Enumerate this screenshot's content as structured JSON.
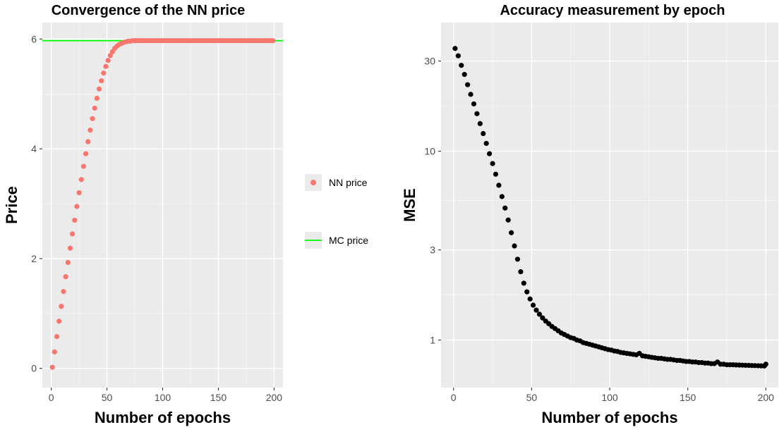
{
  "chart_data": [
    {
      "type": "scatter",
      "title": "Convergence of the NN price",
      "xlabel": "Number of epochs",
      "ylabel": "Price",
      "xlim": [
        -8,
        208
      ],
      "ylim": [
        -0.35,
        6.3
      ],
      "xticks": [
        0,
        50,
        100,
        150,
        200
      ],
      "xtick_labels": [
        "0",
        "50",
        "100",
        "150",
        "200"
      ],
      "yticks": [
        0,
        2,
        4,
        6
      ],
      "ytick_labels": [
        "0",
        "2",
        "4",
        "6"
      ],
      "grid": true,
      "legend_position": "right",
      "series": [
        {
          "name": "NN price",
          "kind": "points",
          "color": "#f8766d",
          "x": [
            1,
            3,
            5,
            7,
            9,
            11,
            13,
            15,
            17,
            19,
            21,
            23,
            25,
            27,
            29,
            31,
            33,
            35,
            37,
            39,
            41,
            43,
            45,
            47,
            49,
            51,
            53,
            55,
            57,
            59,
            61,
            63,
            65,
            67,
            69,
            71,
            73,
            75,
            77,
            79,
            81,
            83,
            85,
            87,
            89,
            91,
            93,
            95,
            97,
            99,
            101,
            103,
            105,
            107,
            109,
            111,
            113,
            115,
            117,
            119,
            121,
            123,
            125,
            127,
            129,
            131,
            133,
            135,
            137,
            139,
            141,
            143,
            145,
            147,
            149,
            151,
            153,
            155,
            157,
            159,
            161,
            163,
            165,
            167,
            169,
            171,
            173,
            175,
            177,
            179,
            181,
            183,
            185,
            187,
            189,
            191,
            193,
            195,
            197,
            199
          ],
          "y": [
            0.02,
            0.3,
            0.58,
            0.86,
            1.13,
            1.4,
            1.67,
            1.93,
            2.19,
            2.45,
            2.7,
            2.95,
            3.2,
            3.44,
            3.68,
            3.91,
            4.13,
            4.34,
            4.55,
            4.74,
            4.92,
            5.09,
            5.24,
            5.38,
            5.5,
            5.61,
            5.7,
            5.77,
            5.83,
            5.87,
            5.9,
            5.92,
            5.94,
            5.95,
            5.96,
            5.96,
            5.97,
            5.97,
            5.97,
            5.97,
            5.97,
            5.97,
            5.97,
            5.97,
            5.97,
            5.97,
            5.97,
            5.97,
            5.97,
            5.97,
            5.97,
            5.97,
            5.97,
            5.97,
            5.97,
            5.97,
            5.97,
            5.97,
            5.97,
            5.97,
            5.97,
            5.97,
            5.97,
            5.97,
            5.97,
            5.97,
            5.97,
            5.97,
            5.97,
            5.97,
            5.97,
            5.97,
            5.97,
            5.97,
            5.97,
            5.97,
            5.97,
            5.97,
            5.97,
            5.97,
            5.97,
            5.97,
            5.97,
            5.97,
            5.97,
            5.97,
            5.97,
            5.97,
            5.97,
            5.97,
            5.97,
            5.97,
            5.97,
            5.97,
            5.97,
            5.97,
            5.97,
            5.97,
            5.97,
            5.97
          ]
        },
        {
          "name": "MC price",
          "kind": "hline",
          "color": "#00ff00",
          "y": 5.97
        }
      ]
    },
    {
      "type": "scatter",
      "title": "Accuracy measurement by epoch",
      "xlabel": "Number of epochs",
      "ylabel": "MSE",
      "y_scale": "log10",
      "xlim": [
        -8,
        208
      ],
      "ylim": [
        0.56,
        48
      ],
      "xticks": [
        0,
        50,
        100,
        150,
        200
      ],
      "xtick_labels": [
        "0",
        "50",
        "100",
        "150",
        "200"
      ],
      "yticks": [
        1,
        3,
        10,
        30
      ],
      "ytick_labels": [
        "1",
        "3",
        "10",
        "30"
      ],
      "grid": true,
      "series": [
        {
          "name": "",
          "kind": "points",
          "color": "#000000",
          "x": [
            1,
            3,
            5,
            7,
            9,
            11,
            13,
            15,
            17,
            19,
            21,
            23,
            25,
            27,
            29,
            31,
            33,
            35,
            37,
            39,
            41,
            43,
            45,
            47,
            49,
            51,
            53,
            55,
            57,
            59,
            61,
            63,
            65,
            67,
            69,
            71,
            73,
            75,
            77,
            79,
            81,
            83,
            85,
            87,
            89,
            91,
            93,
            95,
            97,
            99,
            101,
            103,
            105,
            107,
            109,
            111,
            113,
            115,
            117,
            119,
            121,
            123,
            125,
            127,
            129,
            131,
            133,
            135,
            137,
            139,
            141,
            143,
            145,
            147,
            149,
            151,
            153,
            155,
            157,
            159,
            161,
            163,
            165,
            167,
            169,
            171,
            173,
            175,
            177,
            179,
            181,
            183,
            185,
            187,
            189,
            191,
            193,
            195,
            197,
            199,
            200
          ],
          "y": [
            35,
            32,
            28.5,
            25.5,
            22.5,
            20,
            17.8,
            15.8,
            14,
            12.4,
            11,
            9.7,
            8.6,
            7.55,
            6.6,
            5.75,
            5,
            4.32,
            3.7,
            3.15,
            2.68,
            2.3,
            2,
            1.8,
            1.65,
            1.53,
            1.44,
            1.37,
            1.31,
            1.26,
            1.22,
            1.18,
            1.15,
            1.12,
            1.09,
            1.07,
            1.05,
            1.03,
            1.02,
            1.0,
            0.99,
            0.97,
            0.96,
            0.95,
            0.94,
            0.93,
            0.92,
            0.91,
            0.9,
            0.89,
            0.885,
            0.875,
            0.87,
            0.86,
            0.855,
            0.85,
            0.845,
            0.84,
            0.835,
            0.85,
            0.825,
            0.82,
            0.815,
            0.81,
            0.805,
            0.8,
            0.8,
            0.795,
            0.79,
            0.79,
            0.785,
            0.78,
            0.78,
            0.775,
            0.77,
            0.77,
            0.765,
            0.765,
            0.76,
            0.76,
            0.755,
            0.755,
            0.75,
            0.75,
            0.765,
            0.745,
            0.745,
            0.74,
            0.74,
            0.74,
            0.738,
            0.737,
            0.736,
            0.735,
            0.734,
            0.733,
            0.732,
            0.731,
            0.73,
            0.729,
            0.745
          ]
        }
      ]
    }
  ]
}
